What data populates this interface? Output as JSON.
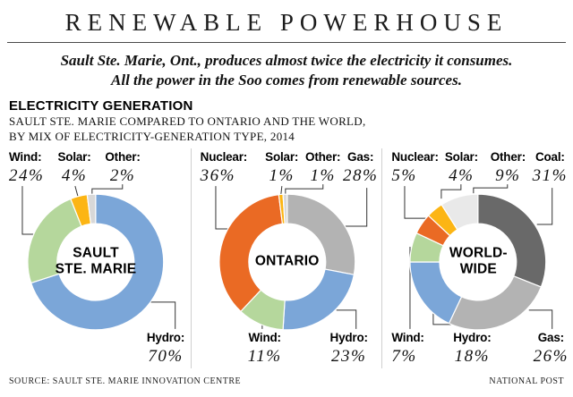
{
  "header": {
    "title": "RENEWABLE POWERHOUSE"
  },
  "subtitle": {
    "line1": "Sault Ste. Marie, Ont., produces almost twice the electricity it consumes.",
    "line2": "All the power in the Soo comes from renewable sources."
  },
  "section": {
    "heading": "ELECTRICITY GENERATION",
    "deck_line1": "SAULT STE. MARIE COMPARED TO ONTARIO AND THE WORLD,",
    "deck_line2": "BY MIX OF ELECTRICITY-GENERATION TYPE, 2014"
  },
  "footer": {
    "source": "SOURCE: SAULT STE. MARIE INNOVATION CENTRE",
    "credit": "NATIONAL POST"
  },
  "colors": {
    "hydro": "#7ba6d8",
    "wind": "#b5d79c",
    "solar": "#fcb514",
    "other": "#d8d8d8",
    "nuclear": "#ea6a24",
    "gas": "#b3b3b3",
    "coal": "#696969",
    "other_world": "#e9e9e9",
    "leader_line": "#333333",
    "panel_divider": "#cfcfcf"
  },
  "chart_data": [
    {
      "type": "pie",
      "style": "donut",
      "title": "SAULT STE. MARIE",
      "center_label_lines": [
        "SAULT",
        "STE. MARIE"
      ],
      "unit": "%",
      "segments": [
        {
          "label": "Hydro",
          "label_display": "Hydro:",
          "value": 70,
          "value_display": "70%",
          "color": "#7ba6d8"
        },
        {
          "label": "Wind",
          "label_display": "Wind:",
          "value": 24,
          "value_display": "24%",
          "color": "#b5d79c"
        },
        {
          "label": "Solar",
          "label_display": "Solar:",
          "value": 4,
          "value_display": "4%",
          "color": "#fcb514"
        },
        {
          "label": "Other",
          "label_display": "Other:",
          "value": 2,
          "value_display": "2%",
          "color": "#d8d8d8"
        }
      ]
    },
    {
      "type": "pie",
      "style": "donut",
      "title": "ONTARIO",
      "center_label_lines": [
        "ONTARIO"
      ],
      "unit": "%",
      "segments": [
        {
          "label": "Gas",
          "label_display": "Gas:",
          "value": 28,
          "value_display": "28%",
          "color": "#b3b3b3"
        },
        {
          "label": "Hydro",
          "label_display": "Hydro:",
          "value": 23,
          "value_display": "23%",
          "color": "#7ba6d8"
        },
        {
          "label": "Wind",
          "label_display": "Wind:",
          "value": 11,
          "value_display": "11%",
          "color": "#b5d79c"
        },
        {
          "label": "Nuclear",
          "label_display": "Nuclear:",
          "value": 36,
          "value_display": "36%",
          "color": "#ea6a24"
        },
        {
          "label": "Solar",
          "label_display": "Solar:",
          "value": 1,
          "value_display": "1%",
          "color": "#fcb514"
        },
        {
          "label": "Other",
          "label_display": "Other:",
          "value": 1,
          "value_display": "1%",
          "color": "#d8d8d8"
        }
      ]
    },
    {
      "type": "pie",
      "style": "donut",
      "title": "WORLD-WIDE",
      "center_label_lines": [
        "WORLD-",
        "WIDE"
      ],
      "unit": "%",
      "segments": [
        {
          "label": "Coal",
          "label_display": "Coal:",
          "value": 31,
          "value_display": "31%",
          "color": "#696969"
        },
        {
          "label": "Gas",
          "label_display": "Gas:",
          "value": 26,
          "value_display": "26%",
          "color": "#b3b3b3"
        },
        {
          "label": "Hydro",
          "label_display": "Hydro:",
          "value": 18,
          "value_display": "18%",
          "color": "#7ba6d8"
        },
        {
          "label": "Wind",
          "label_display": "Wind:",
          "value": 7,
          "value_display": "7%",
          "color": "#b5d79c"
        },
        {
          "label": "Nuclear",
          "label_display": "Nuclear:",
          "value": 5,
          "value_display": "5%",
          "color": "#ea6a24"
        },
        {
          "label": "Solar",
          "label_display": "Solar:",
          "value": 4,
          "value_display": "4%",
          "color": "#fcb514"
        },
        {
          "label": "Other",
          "label_display": "Other:",
          "value": 9,
          "value_display": "9%",
          "color": "#e9e9e9"
        }
      ]
    }
  ]
}
